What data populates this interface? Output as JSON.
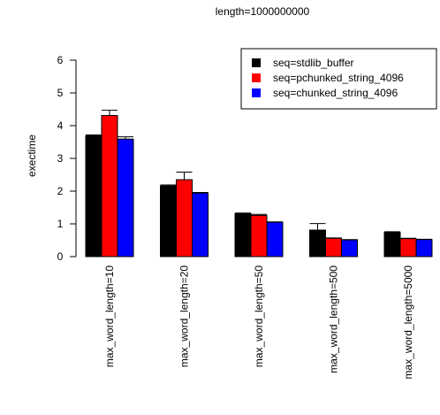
{
  "chart_data": {
    "type": "bar",
    "title": "length=1000000000",
    "ylabel": "exectime",
    "xlabel": "",
    "ylim": [
      0,
      6
    ],
    "yticks": [
      0,
      1,
      2,
      3,
      4,
      5,
      6
    ],
    "grid": false,
    "legend_position": "top-right",
    "categories": [
      "max_word_length=10",
      "max_word_length=20",
      "max_word_length=50",
      "max_word_length=500",
      "max_word_length=5000"
    ],
    "series": [
      {
        "name": "seq=stdlib_buffer",
        "color": "#000000",
        "values": [
          3.69,
          2.16,
          1.31,
          0.81,
          0.74
        ],
        "error_high": [
          3.72,
          2.19,
          1.33,
          1.01,
          0.76
        ]
      },
      {
        "name": "seq=pchunked_string_4096",
        "color": "#ff0000",
        "values": [
          4.31,
          2.35,
          1.26,
          0.56,
          0.55
        ],
        "error_high": [
          4.47,
          2.58,
          1.29,
          0.57,
          0.56
        ]
      },
      {
        "name": "seq=chunked_string_4096",
        "color": "#0000ff",
        "values": [
          3.59,
          1.94,
          1.05,
          0.51,
          0.52
        ],
        "error_high": [
          3.66,
          1.96,
          1.06,
          0.52,
          0.53
        ]
      }
    ]
  }
}
